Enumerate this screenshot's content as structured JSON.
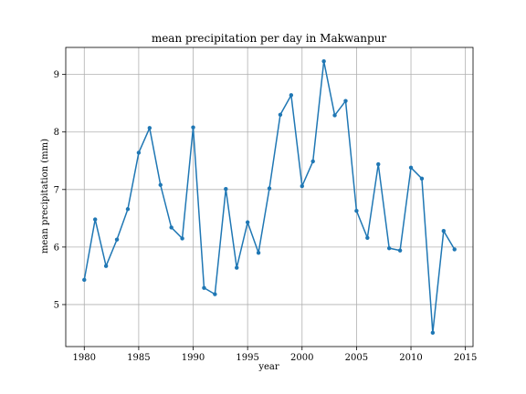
{
  "chart_data": {
    "type": "line",
    "title": "mean precipitation per day in Makwanpur",
    "xlabel": "year",
    "ylabel": "mean precipitation (mm)",
    "xlim": [
      1978.3,
      2015.7
    ],
    "ylim": [
      4.27,
      9.47
    ],
    "xticks": [
      1980,
      1985,
      1990,
      1995,
      2000,
      2005,
      2010,
      2015
    ],
    "yticks": [
      5,
      6,
      7,
      8,
      9
    ],
    "grid": true,
    "series": [
      {
        "color": "#1f77b4",
        "marker": "circle",
        "x": [
          1980,
          1981,
          1982,
          1983,
          1984,
          1985,
          1986,
          1987,
          1988,
          1989,
          1990,
          1991,
          1992,
          1993,
          1994,
          1995,
          1996,
          1997,
          1998,
          1999,
          2000,
          2001,
          2002,
          2003,
          2004,
          2005,
          2006,
          2007,
          2008,
          2009,
          2010,
          2011,
          2012,
          2013,
          2014
        ],
        "y": [
          5.43,
          6.48,
          5.67,
          6.13,
          6.66,
          7.64,
          8.07,
          7.08,
          6.34,
          6.15,
          8.08,
          5.29,
          5.18,
          7.01,
          5.64,
          6.43,
          5.9,
          7.02,
          8.3,
          8.64,
          7.06,
          7.49,
          9.23,
          8.29,
          8.54,
          6.63,
          6.16,
          7.44,
          5.98,
          5.94,
          7.38,
          7.19,
          4.51,
          6.28,
          5.96
        ]
      }
    ]
  }
}
